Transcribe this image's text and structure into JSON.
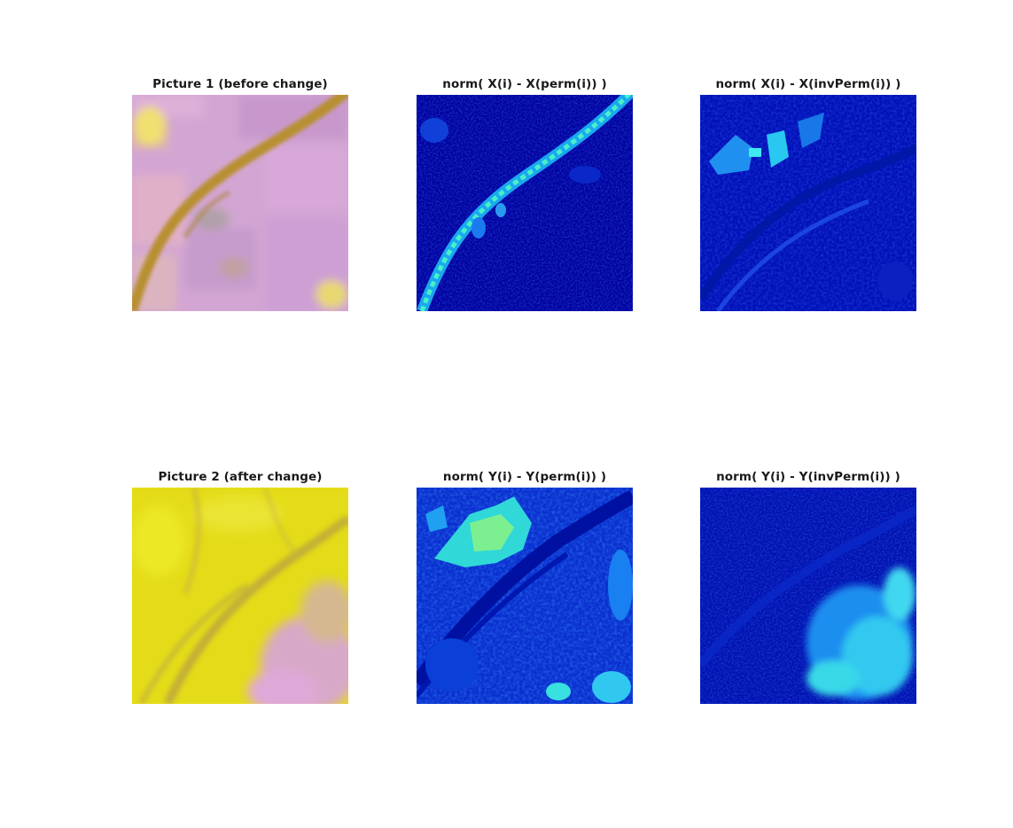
{
  "figure": {
    "panels": [
      {
        "id": "picture-1",
        "title": "Picture 1 (before change)",
        "image": "satellite-rgb-before"
      },
      {
        "id": "norm-x-perm",
        "title": "norm( X(i) - X(perm(i)) )",
        "image": "jet-colormap-difference"
      },
      {
        "id": "norm-x-invperm",
        "title": "norm( X(i) - X(invPerm(i)) )",
        "image": "jet-colormap-difference"
      },
      {
        "id": "picture-2",
        "title": "Picture 2 (after change)",
        "image": "satellite-rgb-after"
      },
      {
        "id": "norm-y-perm",
        "title": "norm( Y(i) - Y(perm(i)) )",
        "image": "jet-colormap-difference"
      },
      {
        "id": "norm-y-invperm",
        "title": "norm( Y(i) - Y(invPerm(i)) )",
        "image": "jet-colormap-difference"
      }
    ]
  },
  "colors": {
    "background": "#ffffff",
    "title_text": "#1a1a1a",
    "picture1_base": "#d6a6d6",
    "picture1_river": "#b8922e",
    "picture2_base": "#e6e016",
    "picture2_pink": "#e0a6d8",
    "jet_dark": "#00009c",
    "jet_blue": "#0a2cf0",
    "jet_cyan": "#22e6ee",
    "jet_green": "#80f060"
  }
}
